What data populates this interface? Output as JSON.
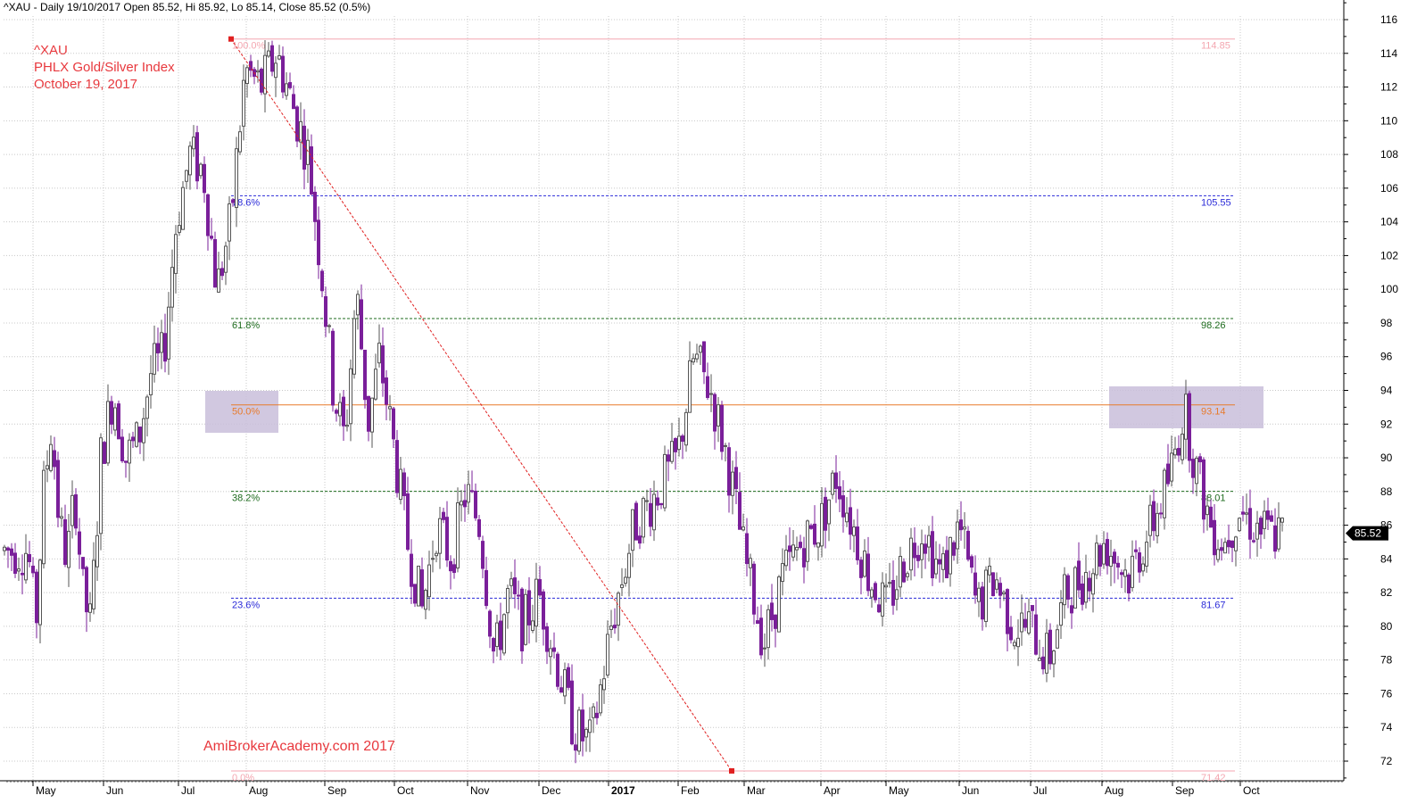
{
  "header": {
    "symbol_line": "^XAU - Daily 19/10/2017 Open 85.52, Hi 85.92, Lo 85.14, Close 85.52 (0.5%)"
  },
  "annotations": {
    "ticker": "^XAU",
    "name": "PHLX Gold/Silver Index",
    "date": "October 19, 2017",
    "watermark": "AmiBrokerAcademy.com  2017"
  },
  "colors": {
    "up_candle": "#555555",
    "down_candle": "#7a1f9a",
    "grid": "#c8c8c8",
    "fib_extreme": "#f4a6b0",
    "fib_blue": "#2a2ad8",
    "fib_green": "#1d6b1d",
    "fib_orange": "#e87a2a",
    "trendline": "#e02020",
    "highlight_box": "#c9bedb",
    "price_label_bg": "#000000"
  },
  "chart_data": {
    "type": "candlestick",
    "title": "^XAU - Daily 19/10/2017 Open 85.52, Hi 85.92, Lo 85.14, Close 85.52 (0.5%)",
    "ylim": [
      71,
      117
    ],
    "y_ticks": [
      72,
      74,
      76,
      78,
      80,
      82,
      84,
      86,
      88,
      90,
      92,
      94,
      96,
      98,
      100,
      102,
      104,
      106,
      108,
      110,
      112,
      114,
      116
    ],
    "x_ticks": [
      "May",
      "Jun",
      "Jul",
      "Aug",
      "Sep",
      "Oct",
      "Nov",
      "Dec",
      "2017",
      "Feb",
      "Mar",
      "Apr",
      "May",
      "Jun",
      "Jul",
      "Aug",
      "Sep",
      "Oct"
    ],
    "last_close": "85.52",
    "fibonacci": [
      {
        "pct": "100.0%",
        "value": 114.85,
        "label": "114.85",
        "style": "extreme"
      },
      {
        "pct": "78.6%",
        "value": 105.55,
        "label": "105.55",
        "style": "blue"
      },
      {
        "pct": "61.8%",
        "value": 98.26,
        "label": "98.26",
        "style": "green"
      },
      {
        "pct": "50.0%",
        "value": 93.14,
        "label": "93.14",
        "style": "orange"
      },
      {
        "pct": "38.2%",
        "value": 88.01,
        "label": "88.01",
        "style": "green"
      },
      {
        "pct": "23.6%",
        "value": 81.67,
        "label": "81.67",
        "style": "blue"
      },
      {
        "pct": "0.0%",
        "value": 71.42,
        "label": "71.42",
        "style": "extreme"
      }
    ],
    "trendline": {
      "from": {
        "date": "Aug 2016",
        "value": 114.85
      },
      "to": {
        "date": "Feb 2017",
        "value": 71.42
      }
    },
    "price_path": [
      [
        "May",
        84.5
      ],
      [
        "May",
        80
      ],
      [
        "May",
        88
      ],
      [
        "May",
        92
      ],
      [
        "May",
        86
      ],
      [
        "May",
        84
      ],
      [
        "May",
        88
      ],
      [
        "May",
        82
      ],
      [
        "May",
        80
      ],
      [
        "Jun",
        90
      ],
      [
        "Jun",
        94
      ],
      [
        "Jun",
        90
      ],
      [
        "Jun",
        91
      ],
      [
        "Jun",
        95
      ],
      [
        "Jun",
        96
      ],
      [
        "Jul",
        104
      ],
      [
        "Jul",
        108
      ],
      [
        "Jul",
        107
      ],
      [
        "Jul",
        100
      ],
      [
        "Jul",
        104
      ],
      [
        "Aug",
        113
      ],
      [
        "Aug",
        112
      ],
      [
        "Aug",
        114
      ],
      [
        "Aug",
        111
      ],
      [
        "Aug",
        108
      ],
      [
        "Sep",
        101
      ],
      [
        "Sep",
        94
      ],
      [
        "Sep",
        91
      ],
      [
        "Sep",
        100
      ],
      [
        "Sep",
        92
      ],
      [
        "Sep",
        96
      ],
      [
        "Oct",
        91
      ],
      [
        "Oct",
        85
      ],
      [
        "Oct",
        81
      ],
      [
        "Oct",
        86
      ],
      [
        "Oct",
        84
      ],
      [
        "Nov",
        88
      ],
      [
        "Nov",
        86
      ],
      [
        "Nov",
        78
      ],
      [
        "Nov",
        82
      ],
      [
        "Nov",
        80
      ],
      [
        "Dec",
        82
      ],
      [
        "Dec",
        78
      ],
      [
        "Dec",
        74
      ],
      [
        "Dec",
        73
      ],
      [
        "2017",
        80
      ],
      [
        "2017",
        86
      ],
      [
        "2017",
        88
      ],
      [
        "Feb",
        90
      ],
      [
        "Feb",
        96
      ],
      [
        "Feb",
        94
      ],
      [
        "Feb",
        90
      ],
      [
        "Mar",
        84
      ],
      [
        "Mar",
        79
      ],
      [
        "Mar",
        83
      ],
      [
        "Mar",
        85
      ],
      [
        "Apr",
        86
      ],
      [
        "Apr",
        89
      ],
      [
        "Apr",
        86
      ],
      [
        "Apr",
        83
      ],
      [
        "May",
        81
      ],
      [
        "May",
        84
      ],
      [
        "May",
        86
      ],
      [
        "May",
        83
      ],
      [
        "Jun",
        86
      ],
      [
        "Jun",
        81
      ],
      [
        "Jun",
        83
      ],
      [
        "Jun",
        80
      ],
      [
        "Jul",
        80
      ],
      [
        "Jul",
        78
      ],
      [
        "Jul",
        82
      ],
      [
        "Jul",
        83
      ],
      [
        "Aug",
        85
      ],
      [
        "Aug",
        83
      ],
      [
        "Aug",
        86
      ],
      [
        "Sep",
        89
      ],
      [
        "Sep",
        93
      ],
      [
        "Sep",
        89
      ],
      [
        "Sep",
        86
      ],
      [
        "Sep",
        85
      ],
      [
        "Oct",
        87
      ],
      [
        "Oct",
        86
      ],
      [
        "Oct",
        85.5
      ]
    ]
  }
}
